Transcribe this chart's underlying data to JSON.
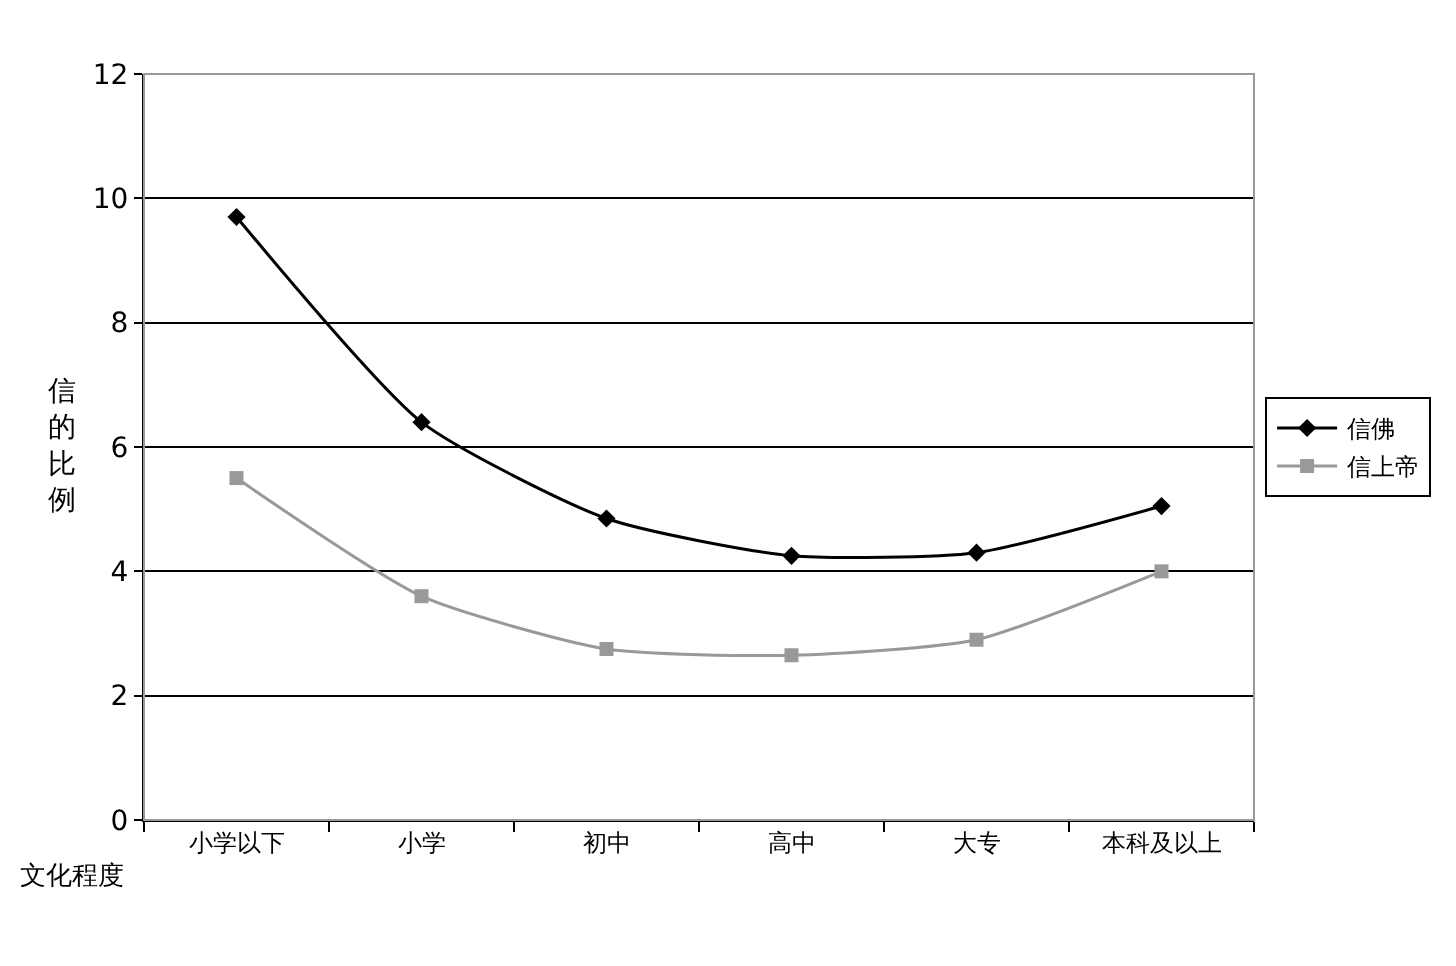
{
  "chart_data": {
    "type": "line",
    "xlabel": "文化程度",
    "ylabel": "信的比例",
    "categories": [
      "小学以下",
      "小学",
      "初中",
      "高中",
      "大专",
      "本科及以上"
    ],
    "series": [
      {
        "name": "信佛",
        "color": "#000000",
        "marker": "diamond",
        "values": [
          9.7,
          6.4,
          4.85,
          4.25,
          4.3,
          5.05
        ]
      },
      {
        "name": "信上帝",
        "color": "#999999",
        "marker": "square",
        "values": [
          5.5,
          3.6,
          2.75,
          2.65,
          2.9,
          4.0
        ]
      }
    ],
    "ylim": [
      0,
      12
    ],
    "yticks": [
      0,
      2,
      4,
      6,
      8,
      10,
      12
    ],
    "grid": "y",
    "legend": "right",
    "line_style": "solid"
  }
}
